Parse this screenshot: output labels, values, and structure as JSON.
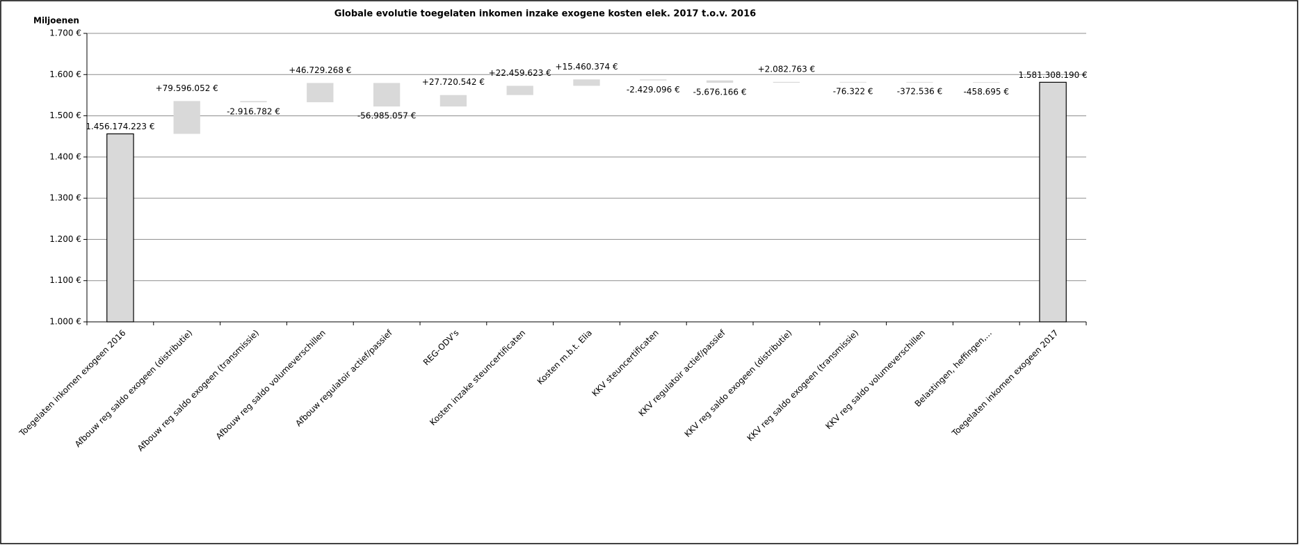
{
  "chart_data": {
    "type": "waterfall",
    "title": "Globale evolutie toegelaten inkomen inzake exogene kosten elek. 2017  t.o.v.  2016",
    "y_axis_label": "Miljoenen",
    "categories": [
      "Toegelaten inkomen exogeen 2016",
      "Afbouw reg saldo exogeen (distributie)",
      "Afbouw reg saldo exogeen (transmissie)",
      "Afbouw reg saldo volumeverschillen",
      "Afbouw regulatoir actief/passief",
      "REG-ODV's",
      "Kosten inzake steuncertificaten",
      "Kosten m.b.t. Elia",
      "KKV steuncertificaten",
      "KKV regulatoir actief/passief",
      "KKV reg saldo exogeen (distributie)",
      "KKV reg saldo exogeen (transmissie)",
      "KKV reg saldo volumeverschillen",
      "Belastingen, heffingen,...",
      "Toegelaten inkomen exogeen 2017"
    ],
    "values": [
      1456.174223,
      79.596052,
      -2.916782,
      46.729268,
      -56.985057,
      27.720542,
      22.459623,
      15.460374,
      -2.429096,
      -5.676166,
      2.082763,
      -0.076322,
      -0.372536,
      -0.458695,
      1581.30819
    ],
    "value_labels": [
      "1.456.174.223 €",
      "+79.596.052 €",
      "-2.916.782 €",
      "+46.729.268 €",
      "-56.985.057 €",
      "+27.720.542 €",
      "+22.459.623 €",
      "+15.460.374 €",
      "-2.429.096 €",
      "-5.676.166 €",
      "+2.082.763 €",
      "-76.322 €",
      "-372.536 €",
      "-458.695 €",
      "1.581.308.190 €"
    ],
    "totals": [
      0,
      14
    ],
    "color": "#d9d9d9",
    "ylim": [
      1000,
      1700
    ],
    "yticks": [
      {
        "value": 1000,
        "label": "1.000 €"
      },
      {
        "value": 1100,
        "label": "1.100 €"
      },
      {
        "value": 1200,
        "label": "1.200 €"
      },
      {
        "value": 1300,
        "label": "1.300 €"
      },
      {
        "value": 1400,
        "label": "1.400 €"
      },
      {
        "value": 1500,
        "label": "1.500 €"
      },
      {
        "value": 1600,
        "label": "1.600 €"
      },
      {
        "value": 1700,
        "label": "1.700 €"
      }
    ],
    "grid": true
  }
}
